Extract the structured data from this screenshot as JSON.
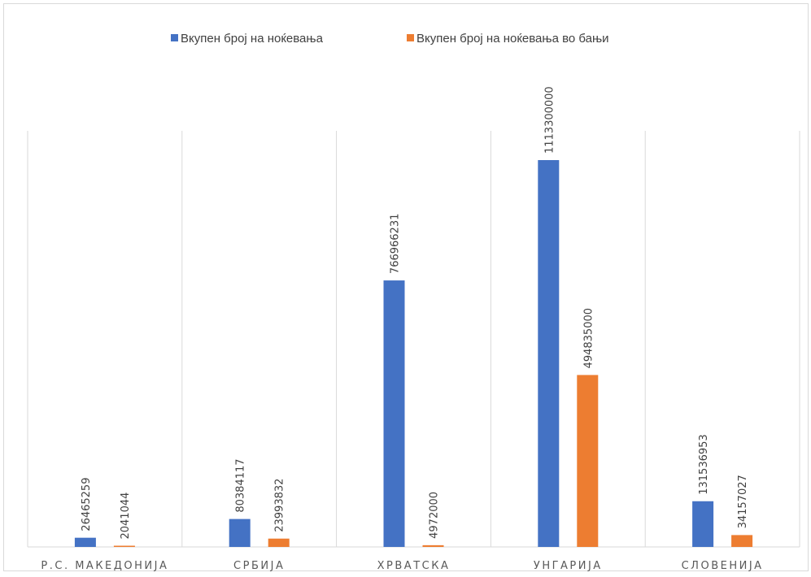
{
  "chart_data": {
    "type": "bar",
    "categories": [
      "Р.С. МАКЕДОНИЈА",
      "СРБИЈА",
      "ХРВАТСКА",
      "УНГАРИЈА",
      "СЛОВЕНИЈА"
    ],
    "series": [
      {
        "name": "Вкупен број на ноќевања",
        "color": "#4472c4",
        "values": [
          26465259,
          80384117,
          766966231,
          1113300000,
          131536953
        ]
      },
      {
        "name": "Вкупен број на ноќевања во бањи",
        "color": "#ed7d31",
        "values": [
          2041044,
          23993832,
          4972000,
          494835000,
          34157027
        ]
      }
    ],
    "data_labels": [
      [
        "26465259",
        "80384117",
        "766966231",
        "1113300000",
        "131536953"
      ],
      [
        "2041044",
        "23993832",
        "4972000",
        "494835000",
        "34157027"
      ]
    ],
    "title": "",
    "xlabel": "",
    "ylabel": "",
    "ylim": [
      0,
      1150000000
    ],
    "legend": "top",
    "grid": "vertical category separators"
  }
}
